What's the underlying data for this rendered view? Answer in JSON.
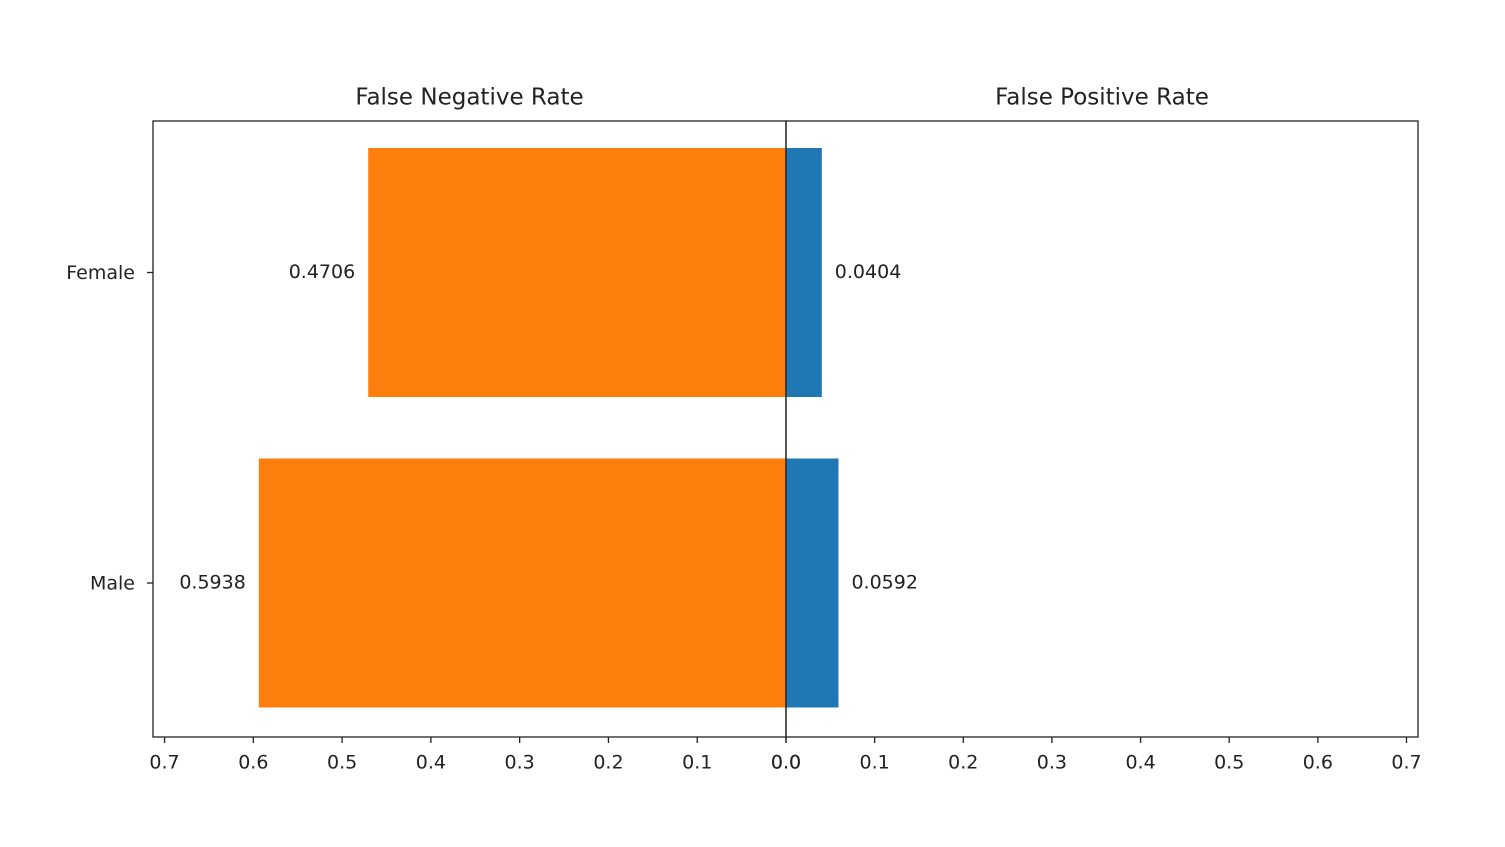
{
  "chart_data": [
    {
      "type": "bar",
      "orientation": "horizontal",
      "title": "False Negative Rate",
      "categories": [
        "Female",
        "Male"
      ],
      "values": [
        0.4706,
        0.5938
      ],
      "color": "#ff7f0e",
      "xlim": [
        0.713,
        0
      ],
      "xticks": [
        0.7,
        0.6,
        0.5,
        0.4,
        0.3,
        0.2,
        0.1,
        {
          "value": 0,
          "label": "0.0"
        }
      ]
    },
    {
      "type": "bar",
      "orientation": "horizontal",
      "title": "False Positive Rate",
      "values": [
        0.0404,
        0.0592
      ],
      "color": "#1f77b4",
      "xlim": [
        0,
        0.713
      ],
      "xticks": [
        {
          "value": 0,
          "label": "0.0"
        },
        0.1,
        0.2,
        0.3,
        0.4,
        0.5,
        0.6,
        0.7
      ]
    }
  ]
}
